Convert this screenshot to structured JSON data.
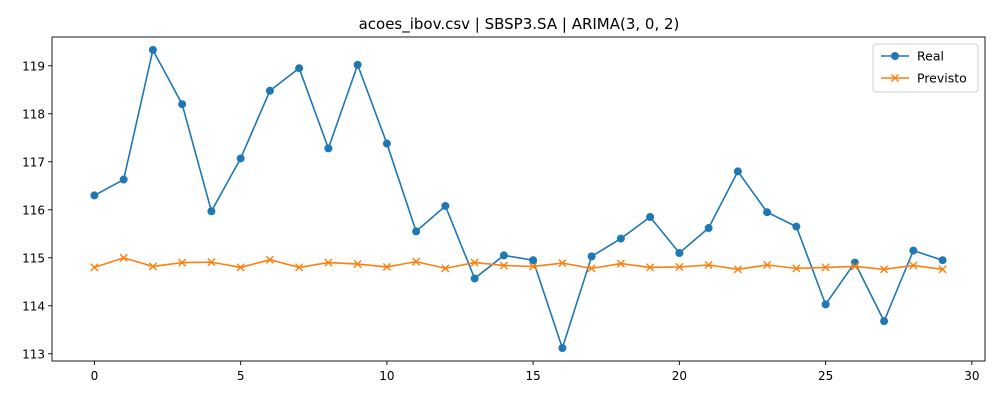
{
  "chart_data": {
    "type": "line",
    "title": "acoes_ibov.csv | SBSP3.SA | ARIMA(3, 0, 2)",
    "xlabel": "",
    "ylabel": "",
    "xlim": [
      -1.45,
      30.45
    ],
    "ylim": [
      112.85,
      119.6
    ],
    "xticks": [
      0,
      5,
      10,
      15,
      20,
      25,
      30
    ],
    "yticks": [
      113,
      114,
      115,
      116,
      117,
      118,
      119
    ],
    "grid": false,
    "legend": "top-right",
    "x": [
      0,
      1,
      2,
      3,
      4,
      5,
      6,
      7,
      8,
      9,
      10,
      11,
      12,
      13,
      14,
      15,
      16,
      17,
      18,
      19,
      20,
      21,
      22,
      23,
      24,
      25,
      26,
      27,
      28,
      29
    ],
    "series": [
      {
        "name": "Real",
        "color": "#1f77b4",
        "marker": "circle",
        "values": [
          116.3,
          116.63,
          119.33,
          118.2,
          115.97,
          117.07,
          118.48,
          118.95,
          117.28,
          119.02,
          117.38,
          115.55,
          116.08,
          114.57,
          115.05,
          114.95,
          113.12,
          115.03,
          115.4,
          115.85,
          115.1,
          115.62,
          116.8,
          115.95,
          115.65,
          114.03,
          114.9,
          113.68,
          115.15,
          114.95
        ]
      },
      {
        "name": "Previsto",
        "color": "#ff7f0e",
        "marker": "x",
        "values": [
          114.8,
          115.0,
          114.82,
          114.9,
          114.91,
          114.8,
          114.96,
          114.8,
          114.9,
          114.87,
          114.81,
          114.92,
          114.78,
          114.9,
          114.84,
          114.82,
          114.89,
          114.78,
          114.88,
          114.8,
          114.81,
          114.85,
          114.76,
          114.85,
          114.78,
          114.8,
          114.82,
          114.76,
          114.84,
          114.76
        ]
      }
    ]
  }
}
